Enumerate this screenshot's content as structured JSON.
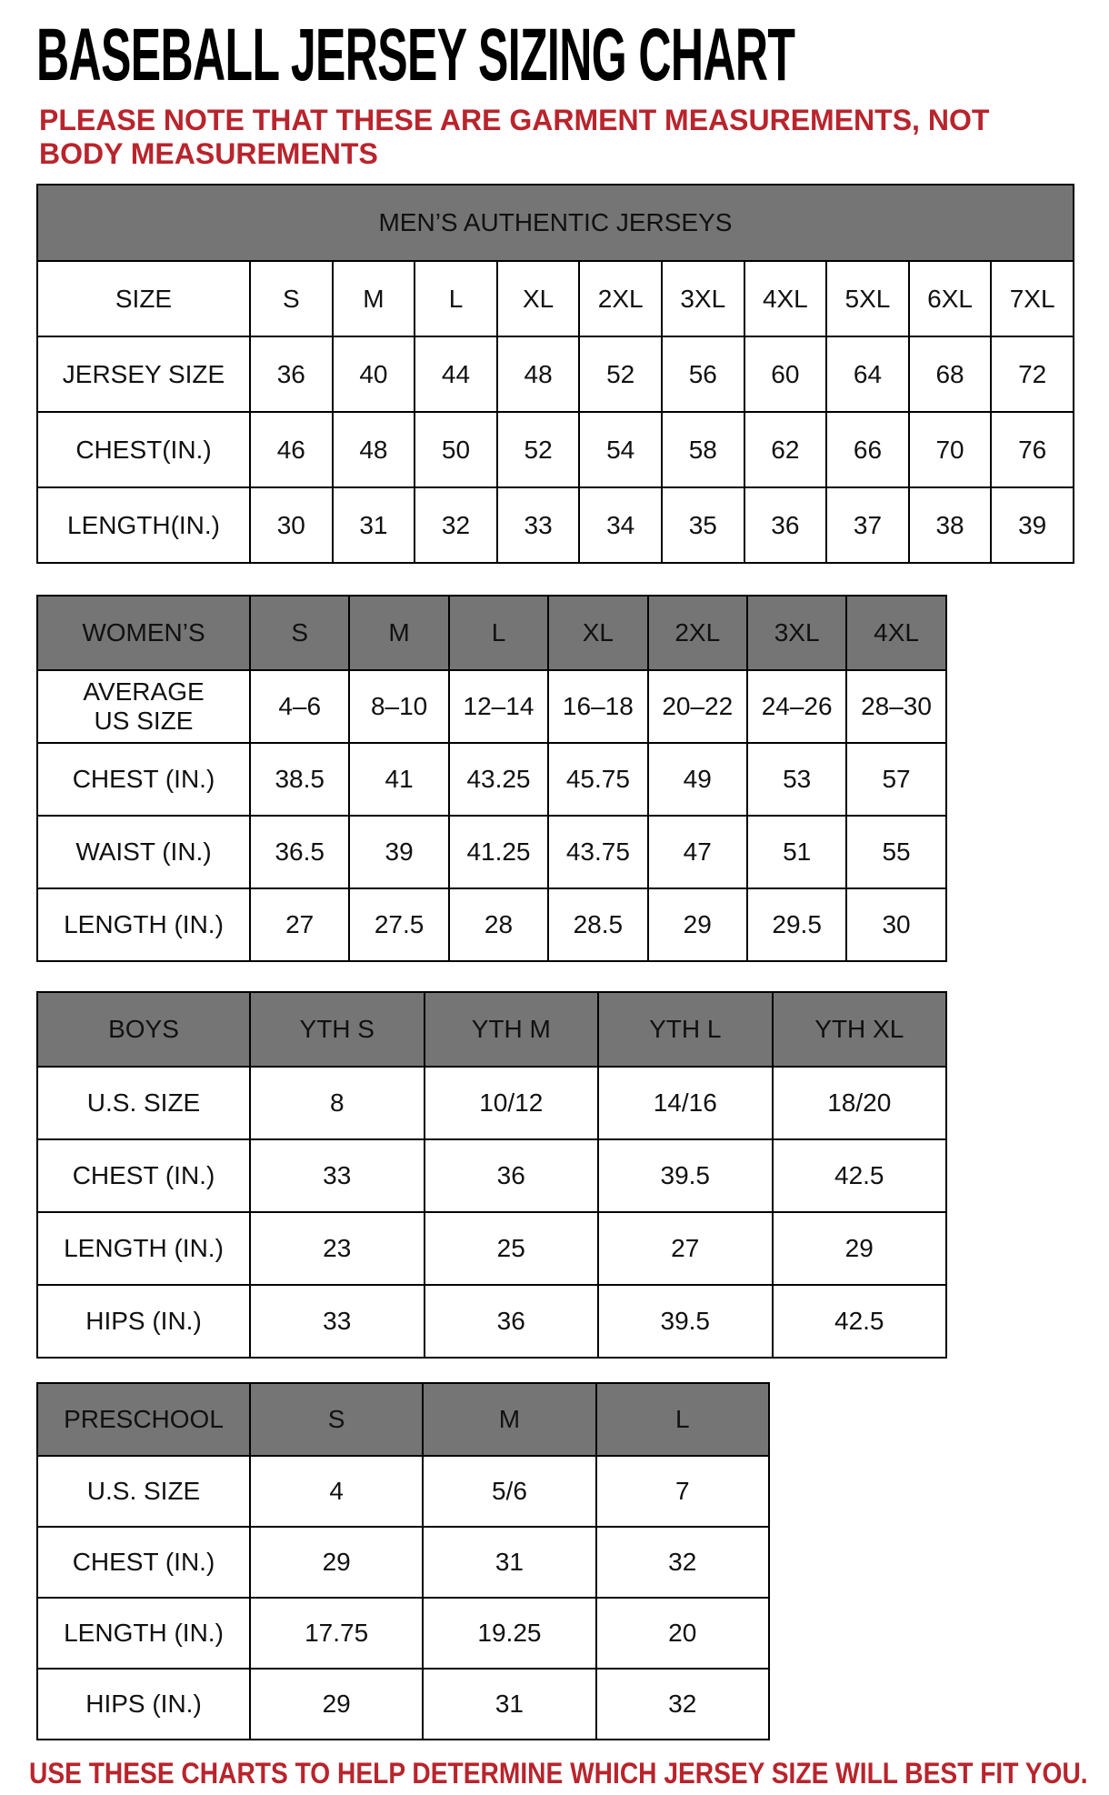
{
  "page": {
    "title": "BASEBALL JERSEY SIZING CHART",
    "note": "PLEASE NOTE THAT THESE ARE GARMENT MEASUREMENTS, NOT BODY MEASUREMENTS",
    "footer": "USE THESE CHARTS TO HELP DETERMINE WHICH JERSEY SIZE WILL BEST FIT YOU.",
    "colors": {
      "accent_red": "#b9242c",
      "header_gray": "#757575",
      "border": "#000000",
      "text": "#111111"
    }
  },
  "tables": [
    {
      "id": "mens",
      "banner": "MEN’S AUTHENTIC JERSEYS",
      "header_row": [
        "SIZE",
        "S",
        "M",
        "L",
        "XL",
        "2XL",
        "3XL",
        "4XL",
        "5XL",
        "6XL",
        "7XL"
      ],
      "rows": [
        [
          "JERSEY SIZE",
          "36",
          "40",
          "44",
          "48",
          "52",
          "56",
          "60",
          "64",
          "68",
          "72"
        ],
        [
          "CHEST(IN.)",
          "46",
          "48",
          "50",
          "52",
          "54",
          "58",
          "62",
          "66",
          "70",
          "76"
        ],
        [
          "LENGTH(IN.)",
          "30",
          "31",
          "32",
          "33",
          "34",
          "35",
          "36",
          "37",
          "38",
          "39"
        ]
      ]
    },
    {
      "id": "womens",
      "banner": null,
      "header_row": [
        "WOMEN’S",
        "S",
        "M",
        "L",
        "XL",
        "2XL",
        "3XL",
        "4XL"
      ],
      "rows": [
        [
          "AVERAGE\nUS SIZE",
          "4–6",
          "8–10",
          "12–14",
          "16–18",
          "20–22",
          "24–26",
          "28–30"
        ],
        [
          "CHEST (IN.)",
          "38.5",
          "41",
          "43.25",
          "45.75",
          "49",
          "53",
          "57"
        ],
        [
          "WAIST (IN.)",
          "36.5",
          "39",
          "41.25",
          "43.75",
          "47",
          "51",
          "55"
        ],
        [
          "LENGTH (IN.)",
          "27",
          "27.5",
          "28",
          "28.5",
          "29",
          "29.5",
          "30"
        ]
      ]
    },
    {
      "id": "boys",
      "banner": null,
      "header_row": [
        "BOYS",
        "YTH S",
        "YTH M",
        "YTH L",
        "YTH XL"
      ],
      "rows": [
        [
          "U.S. SIZE",
          "8",
          "10/12",
          "14/16",
          "18/20"
        ],
        [
          "CHEST (IN.)",
          "33",
          "36",
          "39.5",
          "42.5"
        ],
        [
          "LENGTH (IN.)",
          "23",
          "25",
          "27",
          "29"
        ],
        [
          "HIPS (IN.)",
          "33",
          "36",
          "39.5",
          "42.5"
        ]
      ]
    },
    {
      "id": "preschool",
      "banner": null,
      "header_row": [
        "PRESCHOOL",
        "S",
        "M",
        "L"
      ],
      "rows": [
        [
          "U.S. SIZE",
          "4",
          "5/6",
          "7"
        ],
        [
          "CHEST (IN.)",
          "29",
          "31",
          "32"
        ],
        [
          "LENGTH (IN.)",
          "17.75",
          "19.25",
          "20"
        ],
        [
          "HIPS (IN.)",
          "29",
          "31",
          "32"
        ]
      ]
    }
  ]
}
